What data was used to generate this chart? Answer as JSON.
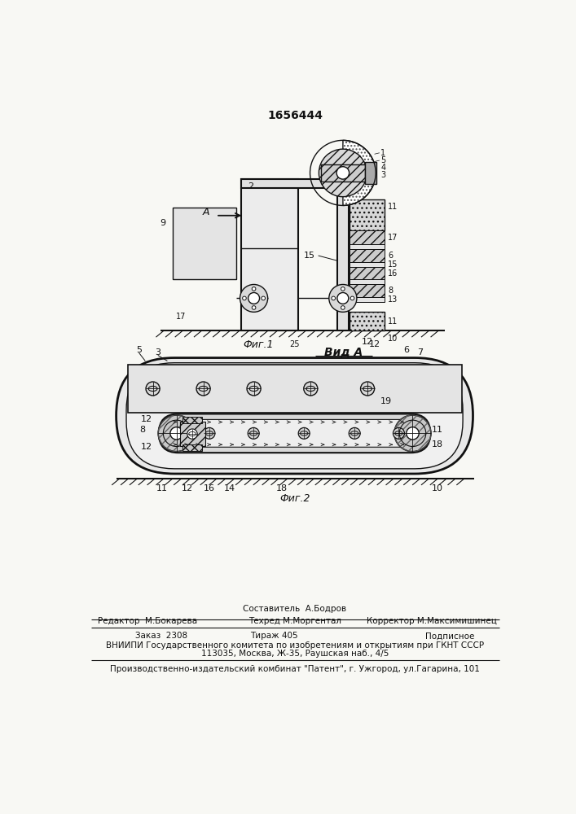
{
  "title": "1656444",
  "bg_color": "#f8f8f4",
  "fig1_caption": "Фиг.1",
  "fig2_caption": "Фиг.2",
  "view_label": "Вид А",
  "footer_lines": [
    "Составитель  А.Бодров",
    "Редактор  М.Бокарева",
    "Техред М.Моргентал",
    "Корректор М.Максимишинец",
    "Заказ  2308",
    "Тираж 405",
    "Подписное",
    "ВНИИПИ Государственного комитета по изобретениям и открытиям при ГКНТ СССР",
    "113035, Москва, Ж-35, Раушская наб., 4/5",
    "Производственно-издательский комбинат \"Патент\", г. Ужгород, ул.Гагарина, 101"
  ],
  "lw": 1.0,
  "lw2": 1.5
}
